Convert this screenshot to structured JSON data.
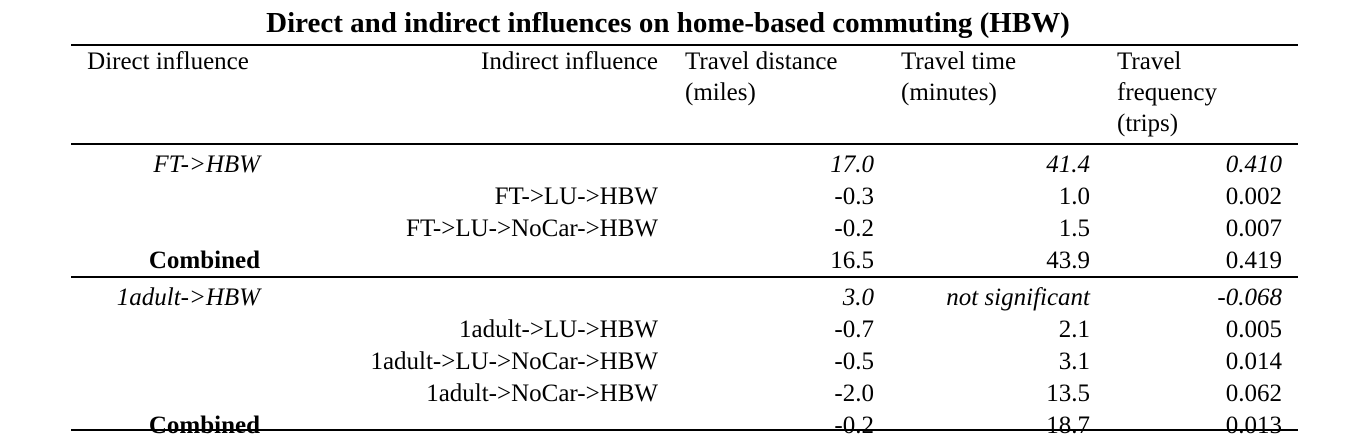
{
  "title": "Direct and indirect influences on home-based commuting (HBW)",
  "headers": {
    "direct": "Direct influence",
    "indirect": "Indirect influence",
    "distance": [
      "Travel distance",
      "(miles)"
    ],
    "time": [
      "Travel time",
      "(minutes)"
    ],
    "frequency": [
      "Travel",
      "frequency",
      "(trips)"
    ]
  },
  "blocks": [
    {
      "rows": [
        {
          "direct": "FT->HBW",
          "indirect": "",
          "distance": "17.0",
          "time": "41.4",
          "frequency": "0.410",
          "style": "direct"
        },
        {
          "direct": "",
          "indirect": "FT->LU->HBW",
          "distance": "-0.3",
          "time": "1.0",
          "frequency": "0.002",
          "style": "indirect"
        },
        {
          "direct": "",
          "indirect": "FT->LU->NoCar->HBW",
          "distance": "-0.2",
          "time": "1.5",
          "frequency": "0.007",
          "style": "indirect"
        },
        {
          "direct": "Combined",
          "indirect": "",
          "distance": "16.5",
          "time": "43.9",
          "frequency": "0.419",
          "style": "combined"
        }
      ]
    },
    {
      "rows": [
        {
          "direct": "1adult->HBW",
          "indirect": "",
          "distance": "3.0",
          "time": "not significant",
          "frequency": "-0.068",
          "style": "direct"
        },
        {
          "direct": "",
          "indirect": "1adult->LU->HBW",
          "distance": "-0.7",
          "time": "2.1",
          "frequency": "0.005",
          "style": "indirect"
        },
        {
          "direct": "",
          "indirect": "1adult->LU->NoCar->HBW",
          "distance": "-0.5",
          "time": "3.1",
          "frequency": "0.014",
          "style": "indirect"
        },
        {
          "direct": "",
          "indirect": "1adult->NoCar->HBW",
          "distance": "-2.0",
          "time": "13.5",
          "frequency": "0.062",
          "style": "indirect"
        },
        {
          "direct": "Combined",
          "indirect": "",
          "distance": "-0.2",
          "time": "18.7",
          "frequency": "0.013",
          "style": "combined"
        }
      ]
    }
  ]
}
